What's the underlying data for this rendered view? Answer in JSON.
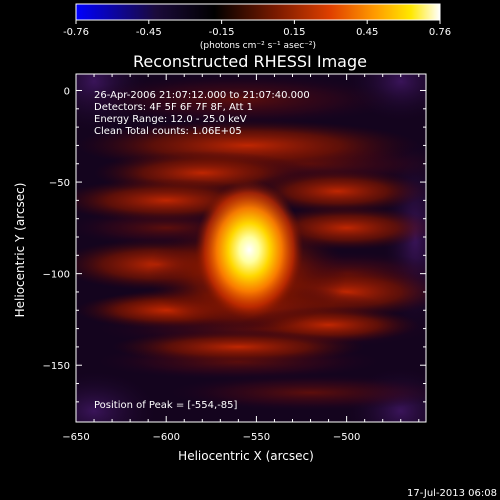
{
  "title": "Reconstructed RHESSI Image",
  "colorbar": {
    "tick_labels": [
      "-0.76",
      "-0.45",
      "-0.15",
      "0.15",
      "0.45",
      "0.76"
    ],
    "units": "(photons cm⁻² s⁻¹ asec⁻²)",
    "range": [
      -0.76,
      0.76
    ],
    "colormap": "blue-black-red-yellow-white",
    "colors": [
      "#0000ff",
      "#000000",
      "#7a1a00",
      "#ff6400",
      "#ffe000",
      "#ffffff"
    ]
  },
  "axes": {
    "xlabel": "Heliocentric X (arcsec)",
    "ylabel": "Heliocentric Y (arcsec)",
    "xlim": [
      -650,
      -456
    ],
    "ylim": [
      -181,
      9
    ],
    "x_ticks": [
      -650,
      -600,
      -550,
      -500
    ],
    "y_ticks": [
      -150,
      -100,
      -50,
      0
    ],
    "x_tick_labels": [
      "−650",
      "−600",
      "−550",
      "−500"
    ],
    "y_tick_labels": [
      "−150",
      "−100",
      "−50",
      "0"
    ]
  },
  "info_lines": [
    "26-Apr-2006 21:07:12.000 to 21:07:40.000",
    "Detectors: 4F 5F 6F 7F 8F, Att 1",
    "Energy Range: 12.0 - 25.0 keV",
    "Clean      Total counts: 1.06E+05"
  ],
  "peak_text": "Position of Peak = [-554,-85]",
  "footer_date": "17-Jul-2013 06:08",
  "image": {
    "peak_x": -554,
    "peak_y": -85
  }
}
